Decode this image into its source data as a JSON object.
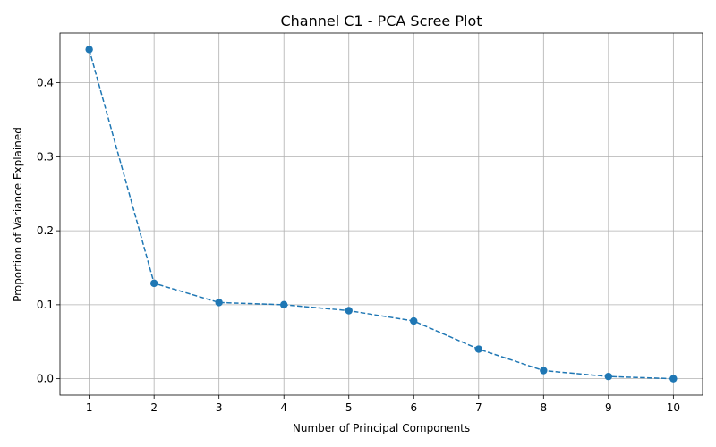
{
  "chart_data": {
    "type": "line",
    "title": "Channel C1 - PCA Scree Plot",
    "xlabel": "Number of Principal Components",
    "ylabel": "Proportion of Variance Explained",
    "x": [
      1,
      2,
      3,
      4,
      5,
      6,
      7,
      8,
      9,
      10
    ],
    "series": [
      {
        "values": [
          0.445,
          0.129,
          0.103,
          0.1,
          0.092,
          0.078,
          0.04,
          0.011,
          0.003,
          0.0
        ],
        "color": "#1f77b4",
        "linestyle": "dashed",
        "marker": "circle"
      }
    ],
    "xticks": [
      "1",
      "2",
      "3",
      "4",
      "5",
      "6",
      "7",
      "8",
      "9",
      "10"
    ],
    "yticks": [
      "0.0",
      "0.1",
      "0.2",
      "0.3",
      "0.4"
    ],
    "ytick_values": [
      0.0,
      0.1,
      0.2,
      0.3,
      0.4
    ],
    "xlim": [
      0.55,
      10.45
    ],
    "ylim": [
      -0.0222,
      0.4672
    ],
    "grid": true,
    "legend": "none"
  }
}
